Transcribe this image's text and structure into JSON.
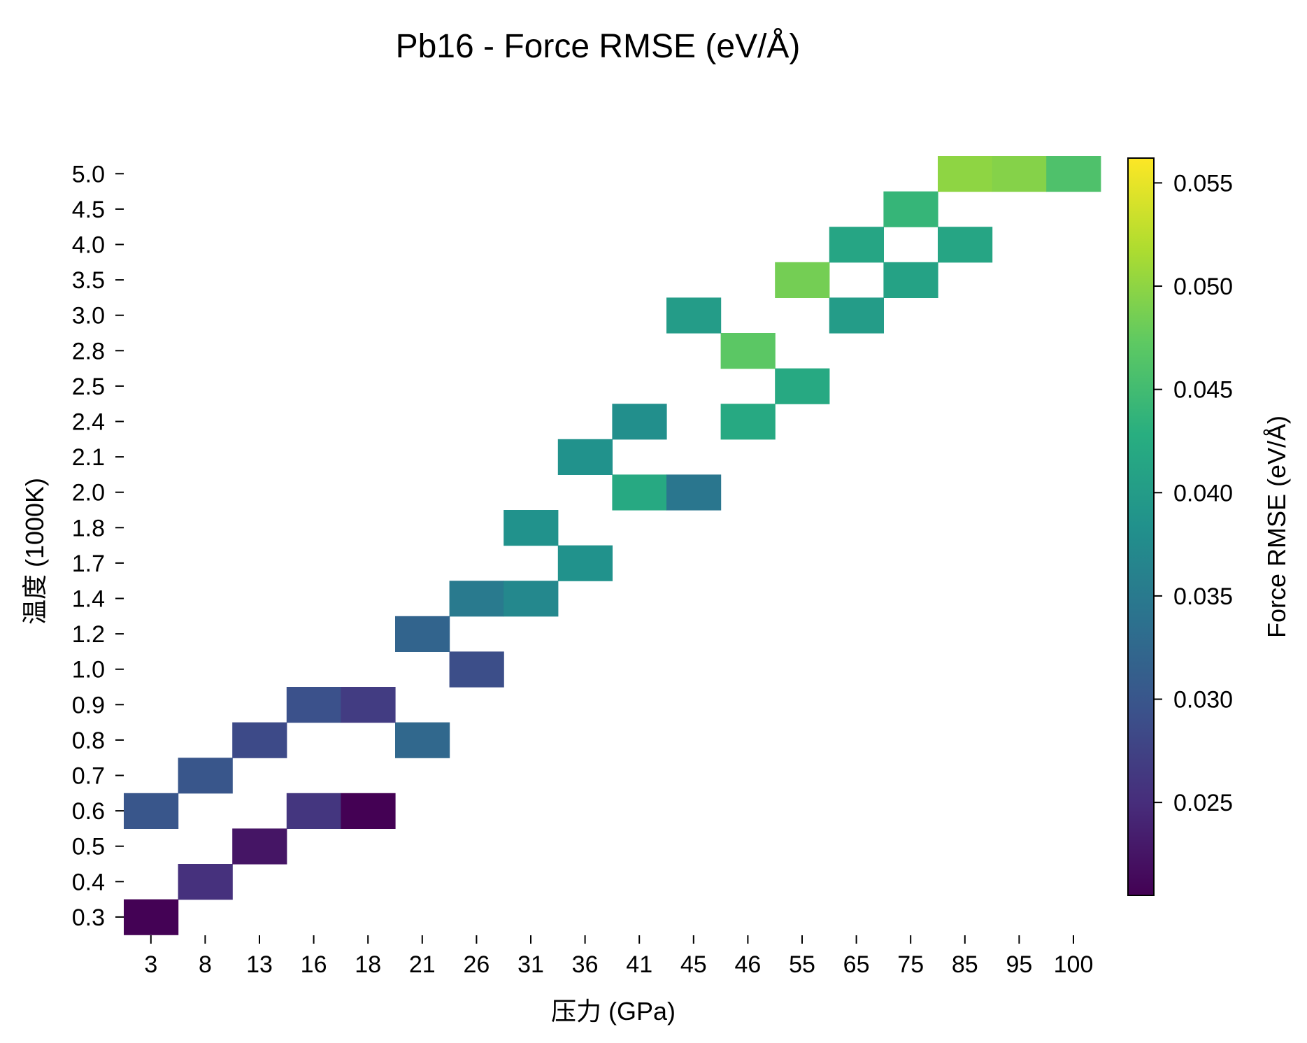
{
  "chart_data": {
    "type": "heatmap",
    "title": "Pb16 - Force RMSE (eV/Å)",
    "xlabel": "压力 (GPa)",
    "ylabel": "温度 (1000K)",
    "x_categories": [
      "3",
      "8",
      "13",
      "16",
      "18",
      "21",
      "26",
      "31",
      "36",
      "41",
      "45",
      "46",
      "55",
      "65",
      "75",
      "85",
      "95",
      "100"
    ],
    "y_categories": [
      "0.3",
      "0.4",
      "0.5",
      "0.6",
      "0.7",
      "0.8",
      "0.9",
      "1.0",
      "1.2",
      "1.4",
      "1.7",
      "1.8",
      "2.0",
      "2.1",
      "2.4",
      "2.5",
      "2.8",
      "3.0",
      "3.5",
      "4.0",
      "4.5",
      "5.0"
    ],
    "cells": [
      {
        "x": "3",
        "y": "0.3",
        "value": 0.0206
      },
      {
        "x": "8",
        "y": "0.4",
        "value": 0.0255
      },
      {
        "x": "13",
        "y": "0.5",
        "value": 0.0225
      },
      {
        "x": "3",
        "y": "0.6",
        "value": 0.03
      },
      {
        "x": "16",
        "y": "0.6",
        "value": 0.026
      },
      {
        "x": "18",
        "y": "0.6",
        "value": 0.0205
      },
      {
        "x": "8",
        "y": "0.7",
        "value": 0.03
      },
      {
        "x": "13",
        "y": "0.8",
        "value": 0.0285
      },
      {
        "x": "21",
        "y": "0.8",
        "value": 0.0325
      },
      {
        "x": "16",
        "y": "0.9",
        "value": 0.0293
      },
      {
        "x": "18",
        "y": "0.9",
        "value": 0.0268
      },
      {
        "x": "26",
        "y": "1.0",
        "value": 0.029
      },
      {
        "x": "21",
        "y": "1.2",
        "value": 0.032
      },
      {
        "x": "26",
        "y": "1.4",
        "value": 0.035
      },
      {
        "x": "31",
        "y": "1.4",
        "value": 0.037
      },
      {
        "x": "36",
        "y": "1.7",
        "value": 0.0385
      },
      {
        "x": "31",
        "y": "1.8",
        "value": 0.0385
      },
      {
        "x": "41",
        "y": "2.0",
        "value": 0.042
      },
      {
        "x": "45",
        "y": "2.0",
        "value": 0.0345
      },
      {
        "x": "36",
        "y": "2.1",
        "value": 0.0385
      },
      {
        "x": "41",
        "y": "2.4",
        "value": 0.038
      },
      {
        "x": "46",
        "y": "2.4",
        "value": 0.042
      },
      {
        "x": "55",
        "y": "2.5",
        "value": 0.042
      },
      {
        "x": "46",
        "y": "2.8",
        "value": 0.047
      },
      {
        "x": "45",
        "y": "3.0",
        "value": 0.04
      },
      {
        "x": "65",
        "y": "3.0",
        "value": 0.04
      },
      {
        "x": "55",
        "y": "3.5",
        "value": 0.0485
      },
      {
        "x": "75",
        "y": "3.5",
        "value": 0.041
      },
      {
        "x": "65",
        "y": "4.0",
        "value": 0.0415
      },
      {
        "x": "85",
        "y": "4.0",
        "value": 0.0415
      },
      {
        "x": "75",
        "y": "4.5",
        "value": 0.044
      },
      {
        "x": "85",
        "y": "5.0",
        "value": 0.05
      },
      {
        "x": "95",
        "y": "5.0",
        "value": 0.0495
      },
      {
        "x": "100",
        "y": "5.0",
        "value": 0.046
      }
    ],
    "colorbar": {
      "label": "Force RMSE (eV/Å)",
      "colormap": "viridis",
      "vmin": 0.0205,
      "vmax": 0.0562,
      "ticks": [
        "0.025",
        "0.030",
        "0.035",
        "0.040",
        "0.045",
        "0.050",
        "0.055"
      ]
    },
    "grid": false,
    "legend": "none"
  }
}
